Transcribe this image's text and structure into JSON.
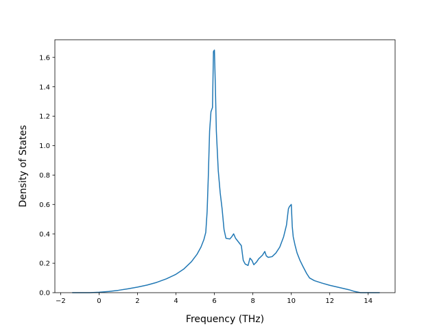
{
  "chart_data": {
    "type": "line",
    "title": "",
    "xlabel": "Frequency (THz)",
    "ylabel": "Density of States",
    "xlim": [
      -2.3,
      15.4
    ],
    "ylim": [
      0.0,
      1.72
    ],
    "xticks": [
      -2,
      0,
      2,
      4,
      6,
      8,
      10,
      12,
      14
    ],
    "yticks": [
      0.0,
      0.2,
      0.4,
      0.6,
      0.8,
      1.0,
      1.2,
      1.4,
      1.6
    ],
    "xtick_labels": [
      "−2",
      "0",
      "2",
      "4",
      "6",
      "8",
      "10",
      "12",
      "14"
    ],
    "ytick_labels": [
      "0.0",
      "0.2",
      "0.4",
      "0.6",
      "0.8",
      "1.0",
      "1.2",
      "1.4",
      "1.6"
    ],
    "grid": false,
    "legend": "none",
    "series": [
      {
        "color": "#1f77b4",
        "x": [
          -1.4,
          -0.5,
          0.0,
          0.5,
          1.0,
          1.5,
          2.0,
          2.5,
          3.0,
          3.5,
          4.0,
          4.4,
          4.8,
          5.1,
          5.3,
          5.45,
          5.55,
          5.62,
          5.68,
          5.75,
          5.82,
          5.9,
          5.95,
          6.0,
          6.05,
          6.1,
          6.2,
          6.3,
          6.4,
          6.5,
          6.6,
          6.8,
          6.9,
          7.0,
          7.1,
          7.25,
          7.4,
          7.5,
          7.6,
          7.75,
          7.85,
          7.95,
          8.05,
          8.2,
          8.3,
          8.5,
          8.62,
          8.7,
          8.8,
          9.0,
          9.2,
          9.4,
          9.6,
          9.75,
          9.85,
          9.9,
          10.0,
          10.05,
          10.1,
          10.2,
          10.3,
          10.45,
          10.6,
          10.8,
          10.95,
          11.2,
          11.6,
          12.0,
          12.5,
          13.0,
          13.3,
          13.6,
          14.0,
          14.5,
          14.6
        ],
        "y": [
          0.0,
          0.0,
          0.003,
          0.008,
          0.016,
          0.026,
          0.038,
          0.052,
          0.07,
          0.094,
          0.125,
          0.16,
          0.21,
          0.262,
          0.31,
          0.36,
          0.41,
          0.55,
          0.78,
          1.1,
          1.23,
          1.26,
          1.64,
          1.65,
          1.4,
          1.1,
          0.83,
          0.68,
          0.57,
          0.43,
          0.37,
          0.365,
          0.38,
          0.4,
          0.37,
          0.345,
          0.32,
          0.22,
          0.195,
          0.185,
          0.235,
          0.22,
          0.19,
          0.21,
          0.23,
          0.255,
          0.28,
          0.25,
          0.24,
          0.245,
          0.27,
          0.31,
          0.38,
          0.46,
          0.57,
          0.585,
          0.6,
          0.45,
          0.38,
          0.32,
          0.27,
          0.22,
          0.18,
          0.13,
          0.1,
          0.082,
          0.065,
          0.05,
          0.035,
          0.02,
          0.008,
          0.0,
          0.0,
          0.0,
          0.0
        ]
      }
    ]
  }
}
